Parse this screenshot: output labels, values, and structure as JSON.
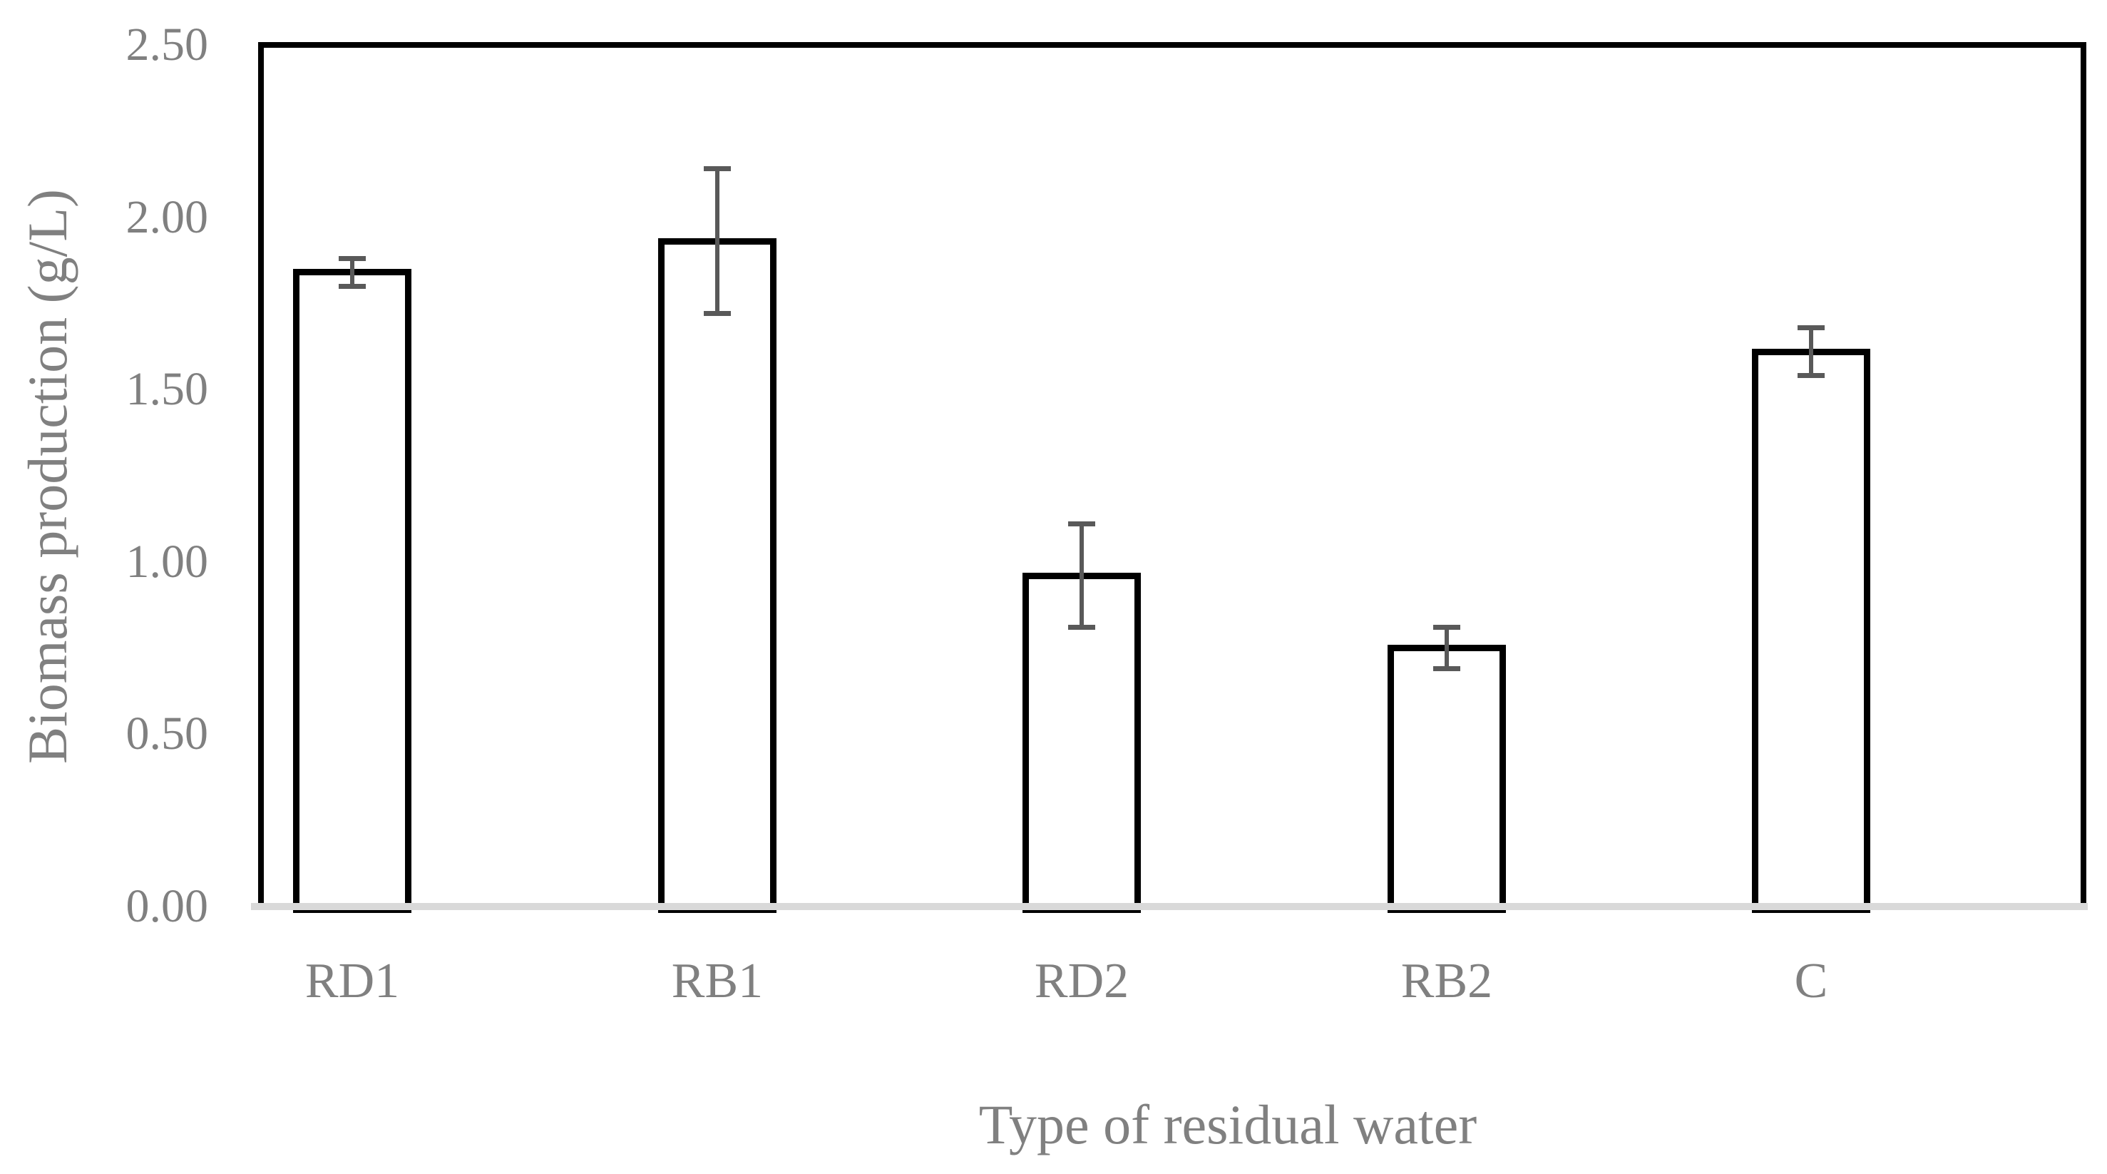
{
  "figure": {
    "kind": "excel-style bar chart figure",
    "background": "#ffffff",
    "text_color": "#808080",
    "bar_fill": "#ffffff",
    "bar_border_color": "#000000",
    "error_bar_color": "#595959",
    "axis_baseline_color": "#d9d9d9",
    "plot_border_color": "#000000"
  },
  "chart_data": {
    "type": "bar",
    "title": "",
    "xlabel": "Type of residual water",
    "ylabel": "Biomass production (g/L)",
    "categories": [
      "RD1",
      "RB1",
      "RD2",
      "RB2",
      "C"
    ],
    "values": [
      1.84,
      1.93,
      0.96,
      0.75,
      1.61
    ],
    "error_bars": [
      0.04,
      0.21,
      0.15,
      0.06,
      0.07
    ],
    "series": [
      {
        "name": "Biomass production",
        "values": [
          1.84,
          1.93,
          0.96,
          0.75,
          1.61
        ]
      }
    ],
    "ylim": [
      0.0,
      2.5
    ],
    "y_tick_step": 0.5,
    "y_ticks": [
      "0.00",
      "0.50",
      "1.00",
      "1.50",
      "2.00",
      "2.50"
    ],
    "grid": false,
    "legend_position": "none",
    "error_bar_style": "plus-minus with caps",
    "bar_fill": "#ffffff",
    "bar_border": "#000000"
  }
}
